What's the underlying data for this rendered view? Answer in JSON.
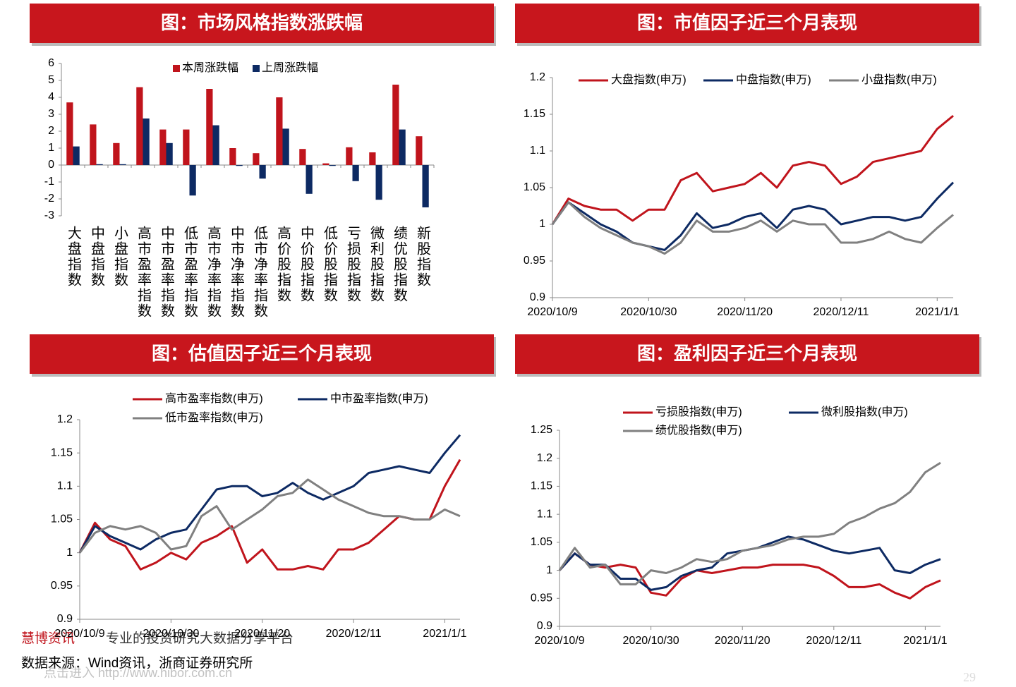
{
  "chart_data": [
    {
      "type": "bar",
      "title": "图：市场风格指数涨跌幅",
      "categories": [
        "大盘指数",
        "中盘指数",
        "小盘指数",
        "高市盈率指数",
        "中市盈率指数",
        "低市盈率指数",
        "高市净率指数",
        "中市净率指数",
        "低市净率指数",
        "高价股指数",
        "中价股指数",
        "低价股指数",
        "亏损股指数",
        "微利股指数",
        "绩优股指数",
        "新股指数"
      ],
      "series": [
        {
          "name": "本周涨跌幅",
          "color": "#c0141c",
          "values": [
            3.7,
            2.4,
            1.3,
            4.6,
            2.1,
            2.1,
            4.5,
            1.0,
            0.7,
            4.0,
            0.95,
            0.1,
            1.05,
            0.75,
            4.75,
            1.7
          ]
        },
        {
          "name": "上周涨跌幅",
          "color": "#0d2a63",
          "values": [
            1.1,
            0.05,
            0.05,
            2.75,
            1.3,
            -1.8,
            2.35,
            -0.05,
            -0.8,
            2.15,
            -1.7,
            -0.05,
            -0.95,
            -2.05,
            2.1,
            -2.5
          ]
        }
      ],
      "ylim": [
        -3,
        6
      ],
      "yticks": [
        -3,
        -2,
        -1,
        0,
        1,
        2,
        3,
        4,
        5,
        6
      ],
      "grid": false
    },
    {
      "type": "line",
      "title": "图：市值因子近三个月表现",
      "categories": [
        "2020/10/9",
        null,
        null,
        null,
        null,
        null,
        "2020/10/30",
        null,
        null,
        null,
        null,
        null,
        "2020/11/20",
        null,
        null,
        null,
        null,
        null,
        "2020/12/11",
        null,
        null,
        null,
        null,
        null,
        "2021/1/1",
        null
      ],
      "series": [
        {
          "name": "大盘指数(申万)",
          "color": "#c0141c",
          "values": [
            1.0,
            1.035,
            1.025,
            1.02,
            1.02,
            1.005,
            1.02,
            1.02,
            1.06,
            1.07,
            1.045,
            1.05,
            1.055,
            1.07,
            1.05,
            1.08,
            1.085,
            1.08,
            1.055,
            1.065,
            1.085,
            1.09,
            1.095,
            1.1,
            1.13,
            1.148
          ]
        },
        {
          "name": "中盘指数(申万)",
          "color": "#0d2a63",
          "values": [
            1.0,
            1.03,
            1.015,
            1.0,
            0.99,
            0.975,
            0.97,
            0.965,
            0.985,
            1.015,
            0.995,
            1.0,
            1.01,
            1.015,
            0.995,
            1.02,
            1.025,
            1.02,
            1.0,
            1.005,
            1.01,
            1.01,
            1.005,
            1.01,
            1.035,
            1.057
          ]
        },
        {
          "name": "小盘指数(申万)",
          "color": "#808080",
          "values": [
            1.0,
            1.03,
            1.01,
            0.995,
            0.985,
            0.975,
            0.97,
            0.96,
            0.975,
            1.005,
            0.99,
            0.99,
            0.995,
            1.005,
            0.99,
            1.005,
            1.0,
            1.0,
            0.975,
            0.975,
            0.98,
            0.99,
            0.98,
            0.975,
            0.995,
            1.013
          ]
        }
      ],
      "ylim": [
        0.9,
        1.2
      ],
      "yticks": [
        0.9,
        0.95,
        1,
        1.05,
        1.1,
        1.15,
        1.2
      ],
      "grid": false
    },
    {
      "type": "line",
      "title": "图：估值因子近三个月表现",
      "categories": [
        "2020/10/9",
        null,
        null,
        null,
        null,
        null,
        "2020/10/30",
        null,
        null,
        null,
        null,
        null,
        "2020/11/20",
        null,
        null,
        null,
        null,
        null,
        "2020/12/11",
        null,
        null,
        null,
        null,
        null,
        "2021/1/1",
        null
      ],
      "series": [
        {
          "name": "高市盈率指数(申万)",
          "color": "#c0141c",
          "values": [
            1.0,
            1.045,
            1.02,
            1.01,
            0.975,
            0.985,
            1.0,
            0.99,
            1.015,
            1.025,
            1.04,
            0.985,
            1.005,
            0.975,
            0.975,
            0.98,
            0.975,
            1.005,
            1.005,
            1.015,
            1.035,
            1.055,
            1.05,
            1.05,
            1.1,
            1.14
          ]
        },
        {
          "name": "中市盈率指数(申万)",
          "color": "#0d2a63",
          "values": [
            1.0,
            1.04,
            1.025,
            1.015,
            1.005,
            1.02,
            1.03,
            1.035,
            1.065,
            1.095,
            1.1,
            1.1,
            1.085,
            1.09,
            1.105,
            1.09,
            1.08,
            1.09,
            1.1,
            1.12,
            1.125,
            1.13,
            1.125,
            1.12,
            1.15,
            1.177
          ]
        },
        {
          "name": "低市盈率指数(申万)",
          "color": "#808080",
          "values": [
            1.0,
            1.03,
            1.04,
            1.035,
            1.04,
            1.03,
            1.005,
            1.01,
            1.055,
            1.07,
            1.035,
            1.05,
            1.065,
            1.085,
            1.09,
            1.11,
            1.095,
            1.08,
            1.07,
            1.06,
            1.055,
            1.055,
            1.05,
            1.05,
            1.065,
            1.055
          ]
        }
      ],
      "ylim": [
        0.9,
        1.2
      ],
      "yticks": [
        0.9,
        0.95,
        1,
        1.05,
        1.1,
        1.15,
        1.2
      ],
      "grid": false
    },
    {
      "type": "line",
      "title": "图：盈利因子近三个月表现",
      "categories": [
        "2020/10/9",
        null,
        null,
        null,
        null,
        null,
        "2020/10/30",
        null,
        null,
        null,
        null,
        null,
        "2020/11/20",
        null,
        null,
        null,
        null,
        null,
        "2020/12/11",
        null,
        null,
        null,
        null,
        null,
        "2021/1/1",
        null
      ],
      "series": [
        {
          "name": "亏损股指数(申万)",
          "color": "#c0141c",
          "values": [
            1.0,
            1.03,
            1.01,
            1.005,
            1.01,
            1.005,
            0.96,
            0.955,
            0.985,
            1.0,
            0.995,
            1.0,
            1.005,
            1.005,
            1.01,
            1.01,
            1.01,
            1.005,
            0.99,
            0.97,
            0.97,
            0.975,
            0.96,
            0.95,
            0.97,
            0.982
          ]
        },
        {
          "name": "微利股指数(申万)",
          "color": "#0d2a63",
          "values": [
            1.0,
            1.03,
            1.01,
            1.01,
            0.985,
            0.985,
            0.965,
            0.97,
            0.99,
            1.0,
            1.005,
            1.03,
            1.035,
            1.04,
            1.05,
            1.06,
            1.055,
            1.045,
            1.035,
            1.03,
            1.035,
            1.04,
            1.0,
            0.995,
            1.01,
            1.02
          ]
        },
        {
          "name": "绩优股指数(申万)",
          "color": "#808080",
          "values": [
            1.0,
            1.04,
            1.005,
            1.01,
            0.975,
            0.975,
            1.0,
            0.995,
            1.005,
            1.02,
            1.015,
            1.02,
            1.035,
            1.04,
            1.045,
            1.055,
            1.06,
            1.06,
            1.065,
            1.085,
            1.095,
            1.11,
            1.12,
            1.14,
            1.175,
            1.192
          ]
        }
      ],
      "ylim": [
        0.9,
        1.25
      ],
      "yticks": [
        0.9,
        0.95,
        1,
        1.05,
        1.1,
        1.15,
        1.2,
        1.25
      ],
      "grid": false
    }
  ],
  "footer": {
    "brand": "慧博资讯",
    "slogan": "专业的投资研究大数据分享平台",
    "source": "数据来源：Wind资讯，浙商证券研究所",
    "watermark": "点击进入 http://www.hibor.com.cn",
    "page": "29"
  }
}
